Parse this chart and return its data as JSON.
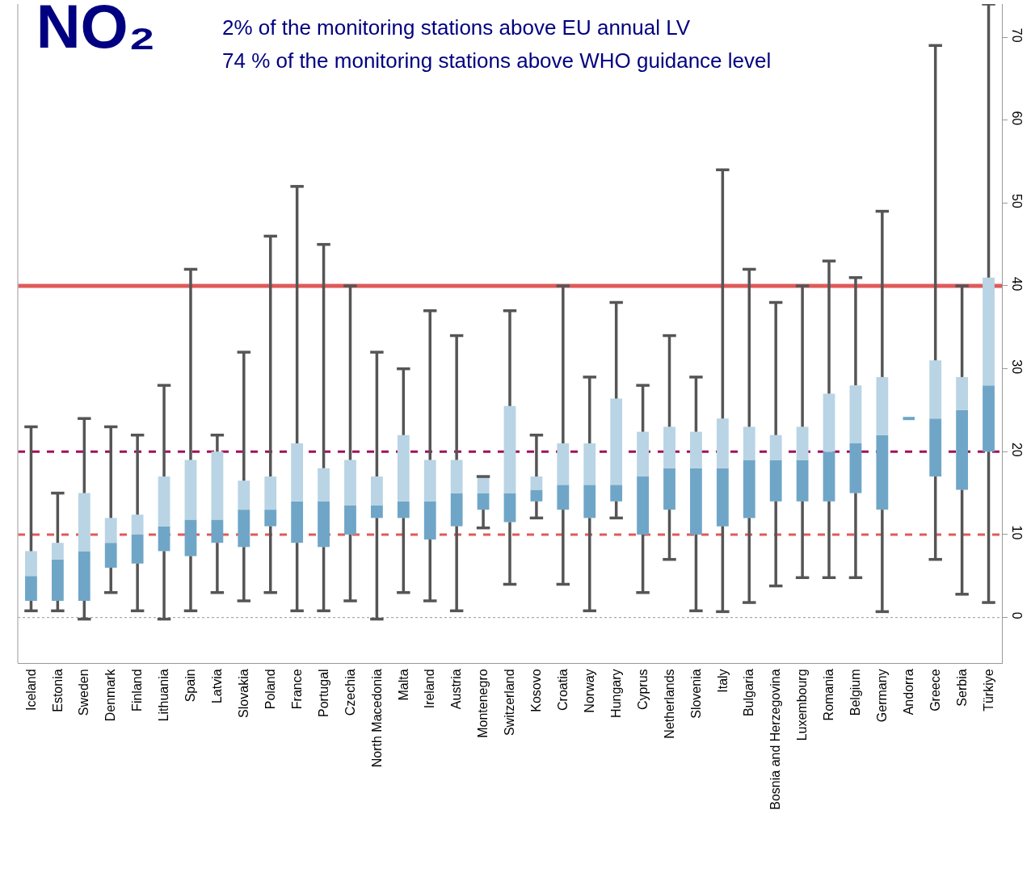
{
  "chart_data": {
    "type": "box",
    "title": "NO₂",
    "annotations": [
      "2% of the monitoring stations above EU annual LV",
      "74 % of the monitoring stations above WHO guidance level"
    ],
    "categories": [
      "Iceland",
      "Estonia",
      "Sweden",
      "Denmark",
      "Finland",
      "Lithuania",
      "Spain",
      "Latvia",
      "Slovakia",
      "Poland",
      "France",
      "Portugal",
      "Czechia",
      "North Macedonia",
      "Malta",
      "Ireland",
      "Austria",
      "Montenegro",
      "Switzerland",
      "Kosovo",
      "Croatia",
      "Norway",
      "Hungary",
      "Cyprus",
      "Netherlands",
      "Slovenia",
      "Italy",
      "Bulgaria",
      "Bosnia and Herzegovina",
      "Luxembourg",
      "Romania",
      "Belgium",
      "Germany",
      "Andorra",
      "Greece",
      "Serbia",
      "Türkiye"
    ],
    "boxes": [
      {
        "low": 0.8,
        "q1": 2,
        "median": 5,
        "q3": 8,
        "high": 23
      },
      {
        "low": 0.8,
        "q1": 2,
        "median": 7,
        "q3": 9,
        "high": 15
      },
      {
        "low": -0.2,
        "q1": 2,
        "median": 8,
        "q3": 15,
        "high": 24
      },
      {
        "low": 3,
        "q1": 6,
        "median": 9,
        "q3": 12,
        "high": 23
      },
      {
        "low": 0.8,
        "q1": 6.5,
        "median": 10,
        "q3": 12.4,
        "high": 22
      },
      {
        "low": -0.2,
        "q1": 8,
        "median": 11,
        "q3": 17,
        "high": 28
      },
      {
        "low": 0.8,
        "q1": 7.4,
        "median": 11.8,
        "q3": 19,
        "high": 42
      },
      {
        "low": 3,
        "q1": 9,
        "median": 11.8,
        "q3": 20,
        "high": 22
      },
      {
        "low": 2,
        "q1": 8.5,
        "median": 13,
        "q3": 16.5,
        "high": 32
      },
      {
        "low": 3,
        "q1": 11,
        "median": 13,
        "q3": 17,
        "high": 46
      },
      {
        "low": 0.8,
        "q1": 9,
        "median": 14,
        "q3": 21,
        "high": 52
      },
      {
        "low": 0.8,
        "q1": 8.5,
        "median": 14,
        "q3": 18,
        "high": 45
      },
      {
        "low": 2,
        "q1": 10,
        "median": 13.5,
        "q3": 19,
        "high": 40
      },
      {
        "low": -0.2,
        "q1": 12,
        "median": 13.5,
        "q3": 17,
        "high": 32
      },
      {
        "low": 3,
        "q1": 12,
        "median": 14,
        "q3": 22,
        "high": 30
      },
      {
        "low": 2,
        "q1": 9.4,
        "median": 14,
        "q3": 19,
        "high": 37
      },
      {
        "low": 0.8,
        "q1": 11,
        "median": 15,
        "q3": 19,
        "high": 34
      },
      {
        "low": 10.8,
        "q1": 13,
        "median": 15,
        "q3": 17,
        "high": 17
      },
      {
        "low": 4,
        "q1": 11.5,
        "median": 15,
        "q3": 25.5,
        "high": 37
      },
      {
        "low": 12,
        "q1": 14,
        "median": 15.4,
        "q3": 17,
        "high": 22
      },
      {
        "low": 4,
        "q1": 13,
        "median": 16,
        "q3": 21,
        "high": 40
      },
      {
        "low": 0.8,
        "q1": 12,
        "median": 16,
        "q3": 21,
        "high": 29
      },
      {
        "low": 12,
        "q1": 14,
        "median": 16,
        "q3": 26.4,
        "high": 38
      },
      {
        "low": 3,
        "q1": 10,
        "median": 17,
        "q3": 22.4,
        "high": 28
      },
      {
        "low": 7,
        "q1": 13,
        "median": 18,
        "q3": 23,
        "high": 34
      },
      {
        "low": 0.8,
        "q1": 10,
        "median": 18,
        "q3": 22.4,
        "high": 29
      },
      {
        "low": 0.7,
        "q1": 11,
        "median": 18,
        "q3": 24,
        "high": 54
      },
      {
        "low": 1.8,
        "q1": 12,
        "median": 19,
        "q3": 23,
        "high": 42
      },
      {
        "low": 3.8,
        "q1": 14,
        "median": 19,
        "q3": 22,
        "high": 38
      },
      {
        "low": 4.8,
        "q1": 14,
        "median": 19,
        "q3": 23,
        "high": 40
      },
      {
        "low": 4.8,
        "q1": 14,
        "median": 20,
        "q3": 27,
        "high": 43
      },
      {
        "low": 4.8,
        "q1": 15,
        "median": 21,
        "q3": 28,
        "high": 41
      },
      {
        "low": 0.7,
        "q1": 13,
        "median": 22,
        "q3": 29,
        "high": 49
      },
      {
        "low": 24,
        "q1": 24,
        "median": 24,
        "q3": 24,
        "high": 24
      },
      {
        "low": 7,
        "q1": 17,
        "median": 24,
        "q3": 31,
        "high": 69
      },
      {
        "low": 2.8,
        "q1": 15.4,
        "median": 25,
        "q3": 29,
        "high": 40
      },
      {
        "low": 1.8,
        "q1": 20,
        "median": 28,
        "q3": 41,
        "high": 74
      }
    ],
    "color": "#6fa6c8",
    "ylim": [
      -5.5,
      74
    ],
    "yticks": [
      0,
      10,
      20,
      30,
      40,
      50,
      60,
      70
    ],
    "ref_lines": [
      {
        "axis": "y",
        "value": 40,
        "label": null,
        "color": "#e05a5a",
        "line_style": "solid"
      },
      {
        "axis": "y",
        "value": 20,
        "label": null,
        "color": "#a0105e",
        "line_style": "dashed"
      },
      {
        "axis": "y",
        "value": 10,
        "label": null,
        "color": "#e05a5a",
        "line_style": "dashed"
      },
      {
        "axis": "y",
        "value": 0,
        "label": null,
        "color": "#aaaaaa",
        "line_style": "dotted"
      }
    ]
  }
}
